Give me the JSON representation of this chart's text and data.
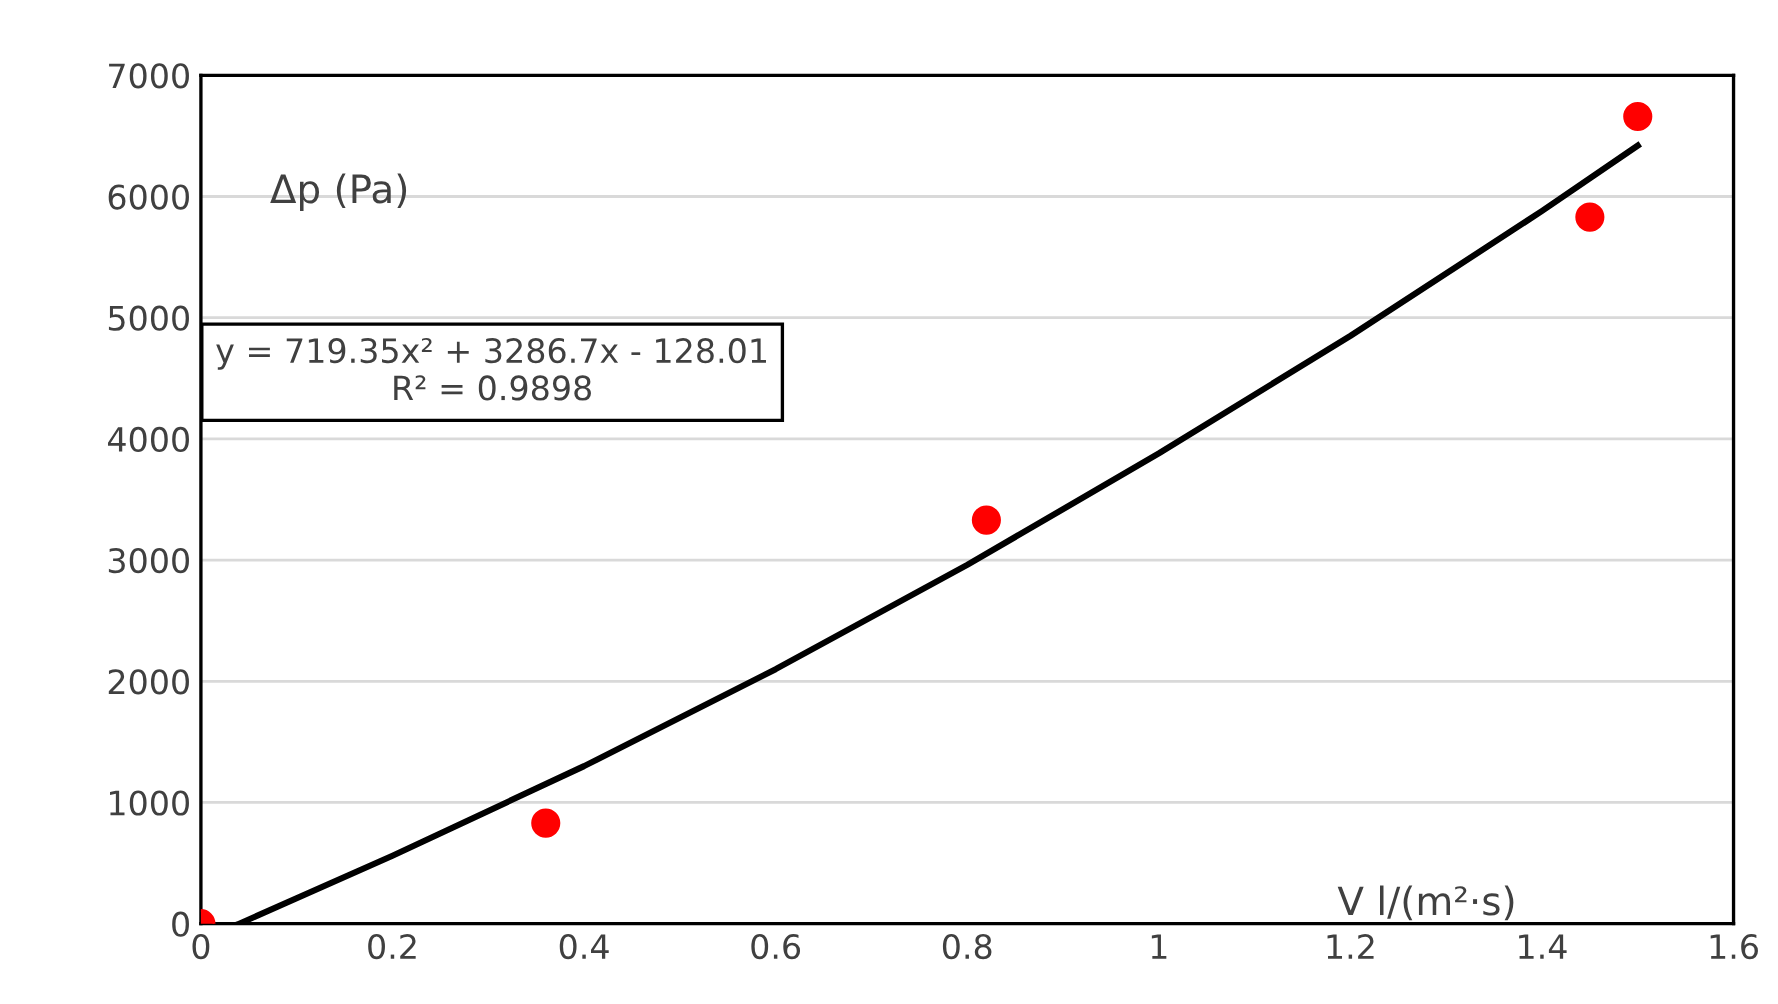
{
  "chart_data": {
    "type": "scatter",
    "xlabel": "V l/(m²·s)",
    "ylabel": "Δp (Pa)",
    "annotations": [
      "y = 719.35x² + 3286.7x - 128.01\nR² = 0.9898"
    ],
    "x": [
      0,
      0.36,
      0.82,
      1.45,
      1.5
    ],
    "series": [
      {
        "color": "#ff0000",
        "marker": "circle",
        "values": [
          0,
          830,
          3330,
          5830,
          6660
        ]
      },
      {
        "type": "line",
        "color": "#000000",
        "line_style": "solid",
        "marker": "none",
        "x": [
          0.04,
          0.2,
          0.4,
          0.6,
          0.8,
          1.0,
          1.2,
          1.4,
          1.5
        ],
        "values": [
          0,
          560,
          1300,
          2100,
          2960,
          3880,
          4850,
          5880,
          6420
        ]
      }
    ],
    "xlim": [
      0,
      1.6
    ],
    "xticks": [
      0,
      0.2,
      0.4,
      0.6,
      0.8,
      1,
      1.2,
      1.4,
      1.6
    ],
    "ylim": [
      0,
      7000
    ],
    "yticks": [
      0,
      1000,
      2000,
      3000,
      4000,
      5000,
      6000,
      7000
    ],
    "grid": "y",
    "legend": false
  }
}
